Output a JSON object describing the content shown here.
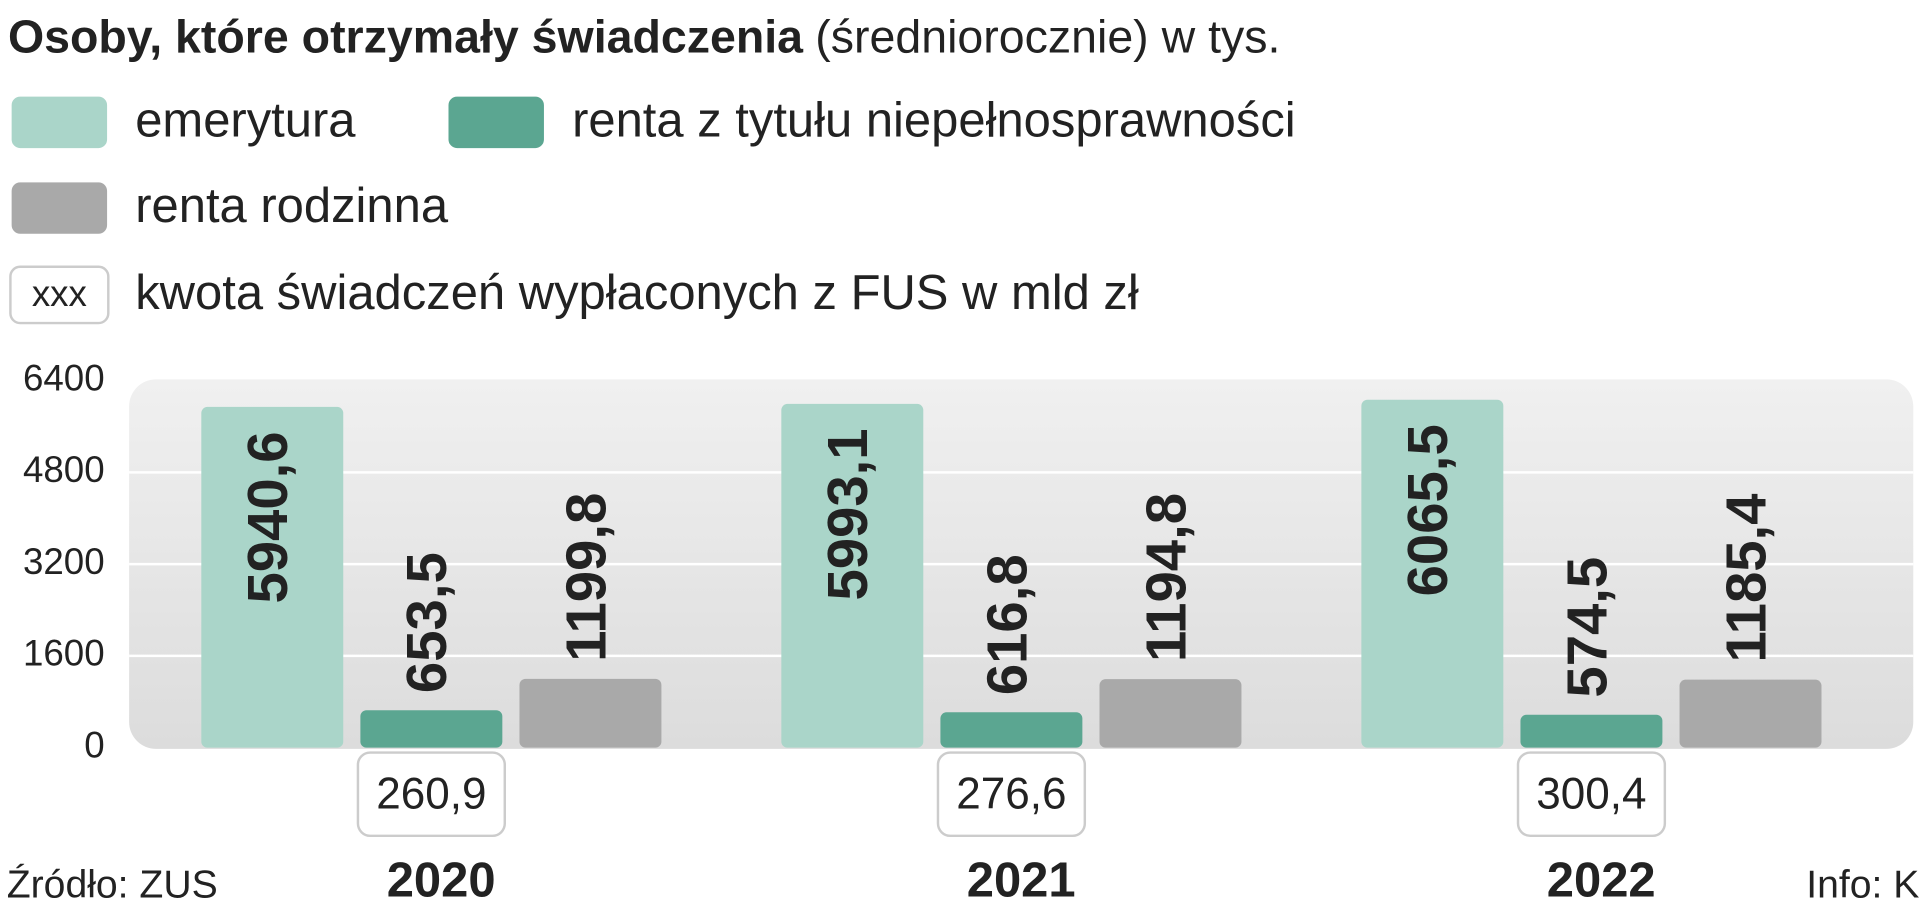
{
  "chart_data": {
    "type": "bar",
    "title": "Osoby, które otrzymały świadczenia",
    "subtitle": "(średniorocznie) w tys.",
    "categories": [
      "2020",
      "2021",
      "2022"
    ],
    "series": [
      {
        "name": "emerytura",
        "color": "#aad5c9",
        "values": [
          5940.6,
          5993.1,
          6065.5
        ],
        "value_labels": [
          "5940,6",
          "5993,1",
          "6065,5"
        ]
      },
      {
        "name": "renta z tytułu niepełnosprawności",
        "color": "#5ba691",
        "values": [
          653.5,
          616.8,
          574.5
        ],
        "value_labels": [
          "653,5",
          "616,8",
          "574,5"
        ]
      },
      {
        "name": "renta rodzinna",
        "color": "#a9a9a9",
        "values": [
          1199.8,
          1194.8,
          1185.4
        ],
        "value_labels": [
          "1199,8",
          "1194,8",
          "1185,4"
        ]
      }
    ],
    "ylim": [
      0,
      6400
    ],
    "yticks": [
      0,
      1600,
      3200,
      4800,
      6400
    ],
    "grid": true,
    "fus": {
      "box_label": "xxx",
      "name": "kwota świadczeń wypłaconych z FUS w mld zł",
      "values": [
        260.9,
        276.6,
        300.4
      ],
      "value_labels": [
        "260,9",
        "276,6",
        "300,4"
      ]
    },
    "source": "Źródło: ZUS",
    "credit": "Info: K"
  }
}
